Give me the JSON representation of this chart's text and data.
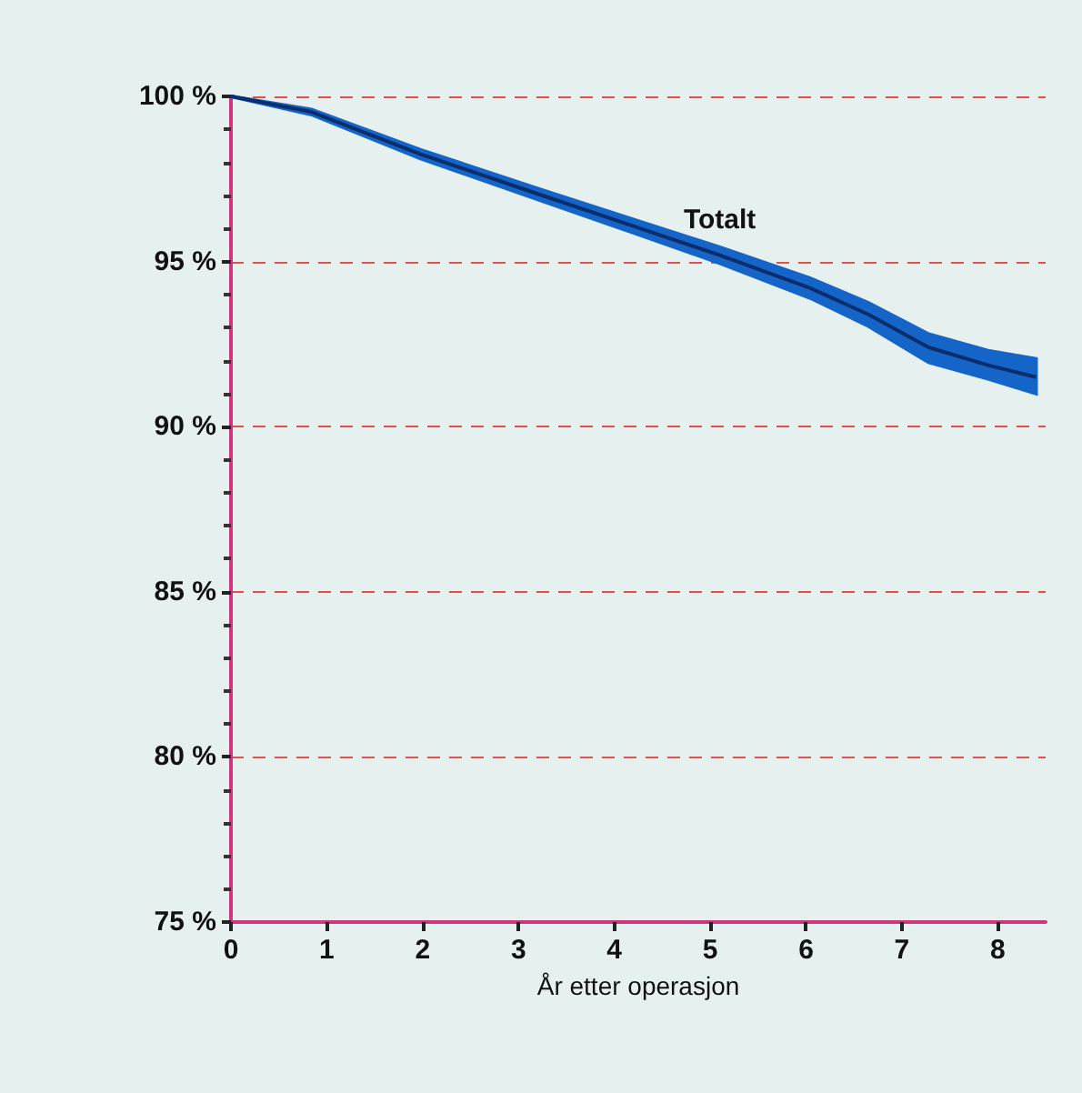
{
  "chart_data": {
    "type": "line",
    "xlabel": "År etter operasjon",
    "x": [
      0,
      0.84,
      1.98,
      3.23,
      4.17,
      5.1,
      6.04,
      6.65,
      7.28,
      7.9,
      8.4
    ],
    "series": [
      {
        "name": "Totalt",
        "color": "#0b2d6b",
        "values": [
          100,
          99.53,
          98.25,
          97.02,
          96.1,
          95.19,
          94.2,
          93.4,
          92.4,
          91.86,
          91.5
        ],
        "lower": [
          100,
          99.45,
          98.12,
          96.85,
          95.9,
          94.95,
          93.9,
          93.05,
          91.95,
          91.45,
          91.0
        ],
        "upper": [
          100,
          99.6,
          98.38,
          97.18,
          96.3,
          95.43,
          94.5,
          93.75,
          92.8,
          92.3,
          92.05
        ]
      }
    ],
    "xlim": [
      0,
      8.5
    ],
    "xticks": [
      0,
      1,
      2,
      3,
      4,
      5,
      6,
      7,
      8
    ],
    "ylim": [
      75,
      100
    ],
    "yticks": [
      {
        "value": 75,
        "label": "75 %"
      },
      {
        "value": 80,
        "label": "80 %"
      },
      {
        "value": 85,
        "label": "85 %"
      },
      {
        "value": 90,
        "label": "90 %"
      },
      {
        "value": 95,
        "label": "95 %"
      },
      {
        "value": 100,
        "label": "100 %"
      }
    ],
    "grid": "y",
    "marker": "none",
    "line_style": "solid"
  }
}
